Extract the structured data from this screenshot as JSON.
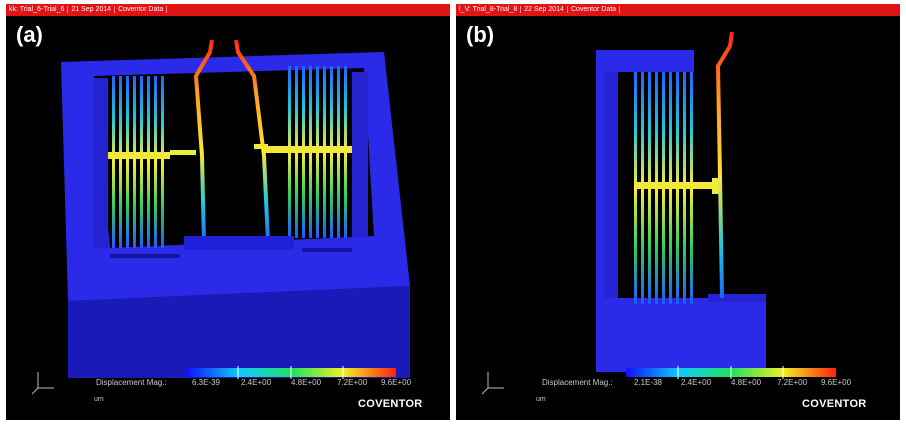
{
  "panels": [
    {
      "label": "(a)",
      "titlebar": [
        "kk: Trial_6-Trial_6",
        "21 Sep 2014",
        "Coventor Data"
      ],
      "legend": {
        "title": "Displacement Mag.:",
        "ticks": [
          "6.3E-39",
          "2.4E+00",
          "4.8E+00",
          "7.2E+00",
          "9.6E+00"
        ],
        "unit": "um"
      },
      "brand": "COVENTOR"
    },
    {
      "label": "(b)",
      "titlebar": [
        "l_V: Trial_8-Trial_8",
        "22 Sep 2014",
        "Coventor Data"
      ],
      "legend": {
        "title": "Displacement Mag.:",
        "ticks": [
          "2.1E-38",
          "2.4E+00",
          "4.8E+00",
          "7.2E+00",
          "9.6E+00"
        ],
        "unit": "um"
      },
      "brand": "COVENTOR"
    }
  ],
  "colors": {
    "substrate": "#2a2af0",
    "substrate_dark": "#1c1cb0",
    "background": "#000000",
    "titlebar": "#e01414"
  }
}
